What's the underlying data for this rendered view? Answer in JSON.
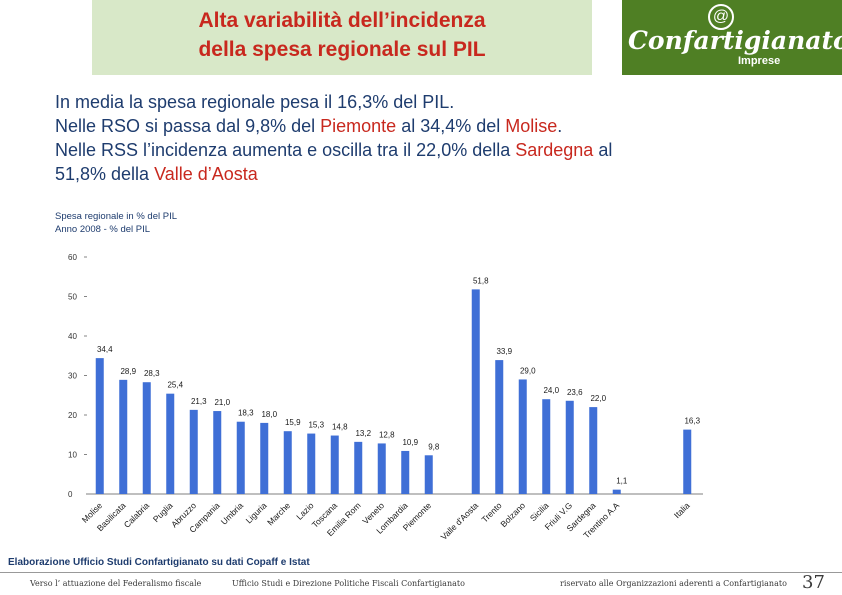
{
  "slide": {
    "title_line1": "Alta variabilità dell’incidenza",
    "title_line2": "della spesa regionale sul PIL",
    "logo": {
      "name": "Confartigianato",
      "sub": "Imprese",
      "icon": "at-sign-icon"
    },
    "intro": {
      "line1": "In media la spesa regionale pesa il 16,3% del PIL.",
      "line2_a": "Nelle RSO si passa dal 9,8% del ",
      "line2_hl1": "Piemonte",
      "line2_b": " al 34,4% del ",
      "line2_hl2": "Molise",
      "line2_c": ".",
      "line3_a": "Nelle RSS l’incidenza aumenta e oscilla tra il 22,0% della ",
      "line3_hl": "Sardegna",
      "line3_b": " al",
      "line4_a": "51,8% della ",
      "line4_hl": "Valle d’Aosta"
    },
    "source": "Elaborazione Ufficio Studi Confartigianato su dati Copaff e Istat",
    "footer_left": "Verso l’ attuazione del Federalismo fiscale",
    "footer_center": "Ufficio Studi e Direzione Politiche Fiscali Confartigianato",
    "footer_right": "riservato alle Organizzazioni aderenti a Confartigianato",
    "page_number": "37",
    "highlight_color": "#c8281e",
    "text_color": "#1e3c6e"
  },
  "chart_data": {
    "type": "bar",
    "caption_line1": "Spesa regionale in % del PIL",
    "caption_line2": "Anno 2008 - % del PIL",
    "ylim": [
      0,
      60
    ],
    "yticks": [
      0,
      10,
      20,
      30,
      40,
      50,
      60
    ],
    "bar_color": "#3f6fd6",
    "categories": [
      "Molise",
      "Basilicata",
      "Calabria",
      "Puglia",
      "Abruzzo",
      "Campania",
      "Umbria",
      "Liguria",
      "Marche",
      "Lazio",
      "Toscana",
      "Emilia Rom",
      "Veneto",
      "Lombardia",
      "Piemonte",
      "",
      "Valle d'Aosta",
      "Trento",
      "Bolzano",
      "Sicilia",
      "Friuli V.G",
      "Sardegna",
      "Trentino A.A",
      "",
      "",
      "Italia"
    ],
    "values": [
      34.4,
      28.9,
      28.3,
      25.4,
      21.3,
      21.0,
      18.3,
      18.0,
      15.9,
      15.3,
      14.8,
      13.2,
      12.8,
      10.9,
      9.8,
      null,
      51.8,
      33.9,
      29.0,
      24.0,
      23.6,
      22.0,
      1.1,
      null,
      null,
      16.3
    ],
    "labels": [
      "34,4",
      "28,9",
      "28,3",
      "25,4",
      "21,3",
      "21,0",
      "18,3",
      "18,0",
      "15,9",
      "15,3",
      "14,8",
      "13,2",
      "12,8",
      "10,9",
      "9,8",
      "",
      "51,8",
      "33,9",
      "29,0",
      "24,0",
      "23,6",
      "22,0",
      "1,1",
      "",
      "",
      "16,3"
    ]
  }
}
